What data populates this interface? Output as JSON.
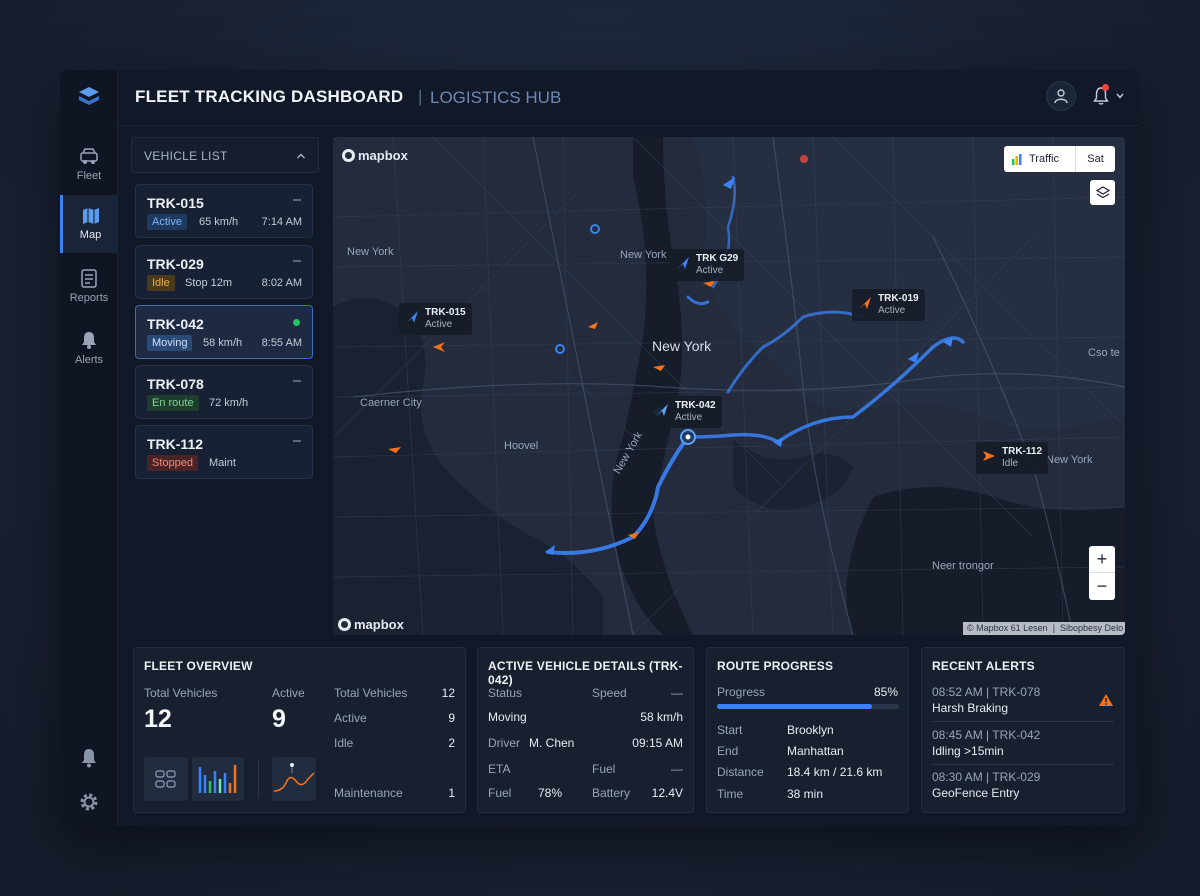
{
  "header": {
    "title": "FLEET TRACKING DASHBOARD",
    "separator": "|",
    "subtitle": "LOGISTICS HUB"
  },
  "rail": {
    "items": [
      {
        "label": "Fleet",
        "icon": "truck-icon"
      },
      {
        "label": "Map",
        "icon": "map-icon",
        "active": true
      },
      {
        "label": "Reports",
        "icon": "clipboard-icon"
      },
      {
        "label": "Alerts",
        "icon": "bell-icon"
      }
    ]
  },
  "vehicle_list": {
    "title": "VEHICLE LIST",
    "vehicles": [
      {
        "id": "TRK-015",
        "status": "Active",
        "info": "65 km/h",
        "time": "7:14 AM"
      },
      {
        "id": "TRK-029",
        "status": "Idle",
        "info": "Stop 12m",
        "time": "8:02 AM"
      },
      {
        "id": "TRK-042",
        "status": "Moving",
        "info": "58 km/h",
        "time": "8:55 AM"
      },
      {
        "id": "TRK-078",
        "status": "En route",
        "info": "72 km/h",
        "time": ""
      },
      {
        "id": "TRK-112",
        "status": "Stopped",
        "info": "Maint",
        "time": ""
      }
    ]
  },
  "map": {
    "brand": "mapbox",
    "traffic_label": "Traffic",
    "sat_label": "Sat",
    "zoom_in": "+",
    "zoom_out": "−",
    "attribution": "© Mapbox 61 Lesen",
    "attribution2": "Sibopbesy Delo",
    "places": {
      "p1": "New York",
      "p2": "New York",
      "p3": "New York",
      "p4": "Caerner City",
      "p5": "Hoovel",
      "p6": "New York",
      "p7": "New York",
      "p8": "Neer trongor",
      "p9": "Cso te"
    },
    "tags": [
      {
        "name": "TRK-015",
        "status": "Active"
      },
      {
        "name": "TRK G29",
        "status": "Active"
      },
      {
        "name": "TRK-019",
        "status": "Active"
      },
      {
        "name": "TRK-042",
        "status": "Active"
      },
      {
        "name": "TRK-112",
        "status": "Idle"
      }
    ]
  },
  "fleet_overview": {
    "title": "FLEET OVERVIEW",
    "total_label": "Total Vehicles",
    "total_value": "12",
    "active_label": "Active",
    "active_value": "9",
    "rows": [
      {
        "label": "Total Vehicles",
        "value": "12"
      },
      {
        "label": "Active",
        "value": "9"
      },
      {
        "label": "Idle",
        "value": "2"
      },
      {
        "label": "Maintenance",
        "value": "1"
      }
    ]
  },
  "active_details": {
    "title": "ACTIVE VEHICLE DETAILS (TRK-042)",
    "status_label": "Status",
    "status_value": "Moving",
    "speed_label": "Speed",
    "speed_dash": "—",
    "speed_value": "58 km/h",
    "driver_label": "Driver",
    "driver_value": "M. Chen",
    "driver_time": "09:15 AM",
    "eta_label": "ETA",
    "fuel_label_top": "Fuel",
    "fuel_dash": "—",
    "fuel_label": "Fuel",
    "fuel_value": "78%",
    "battery_label": "Battery",
    "battery_value": "12.4V"
  },
  "route_progress": {
    "title": "ROUTE PROGRESS",
    "progress_label": "Progress",
    "progress_text": "85%",
    "progress": 0.85,
    "rows": [
      {
        "label": "Start",
        "value": "Brooklyn"
      },
      {
        "label": "End",
        "value": "Manhattan"
      },
      {
        "label": "Distance",
        "value": "18.4 km / 21.6 km"
      },
      {
        "label": "Time",
        "value": "38 min"
      }
    ]
  },
  "alerts": {
    "title": "RECENT ALERTS",
    "items": [
      {
        "meta": "08:52 AM | TRK-078",
        "text": "Harsh Braking"
      },
      {
        "meta": "08:45 AM | TRK-042",
        "text": "Idling >15min"
      },
      {
        "meta": "08:30 AM | TRK-029",
        "text": "GeoFence Entry"
      }
    ]
  },
  "colors": {
    "accent": "#3b82f6",
    "active": "#5b9cf0",
    "idle": "#e8b04a",
    "stopped": "#e36a5a",
    "enroute": "#5cc27a",
    "warning": "#f97316"
  }
}
